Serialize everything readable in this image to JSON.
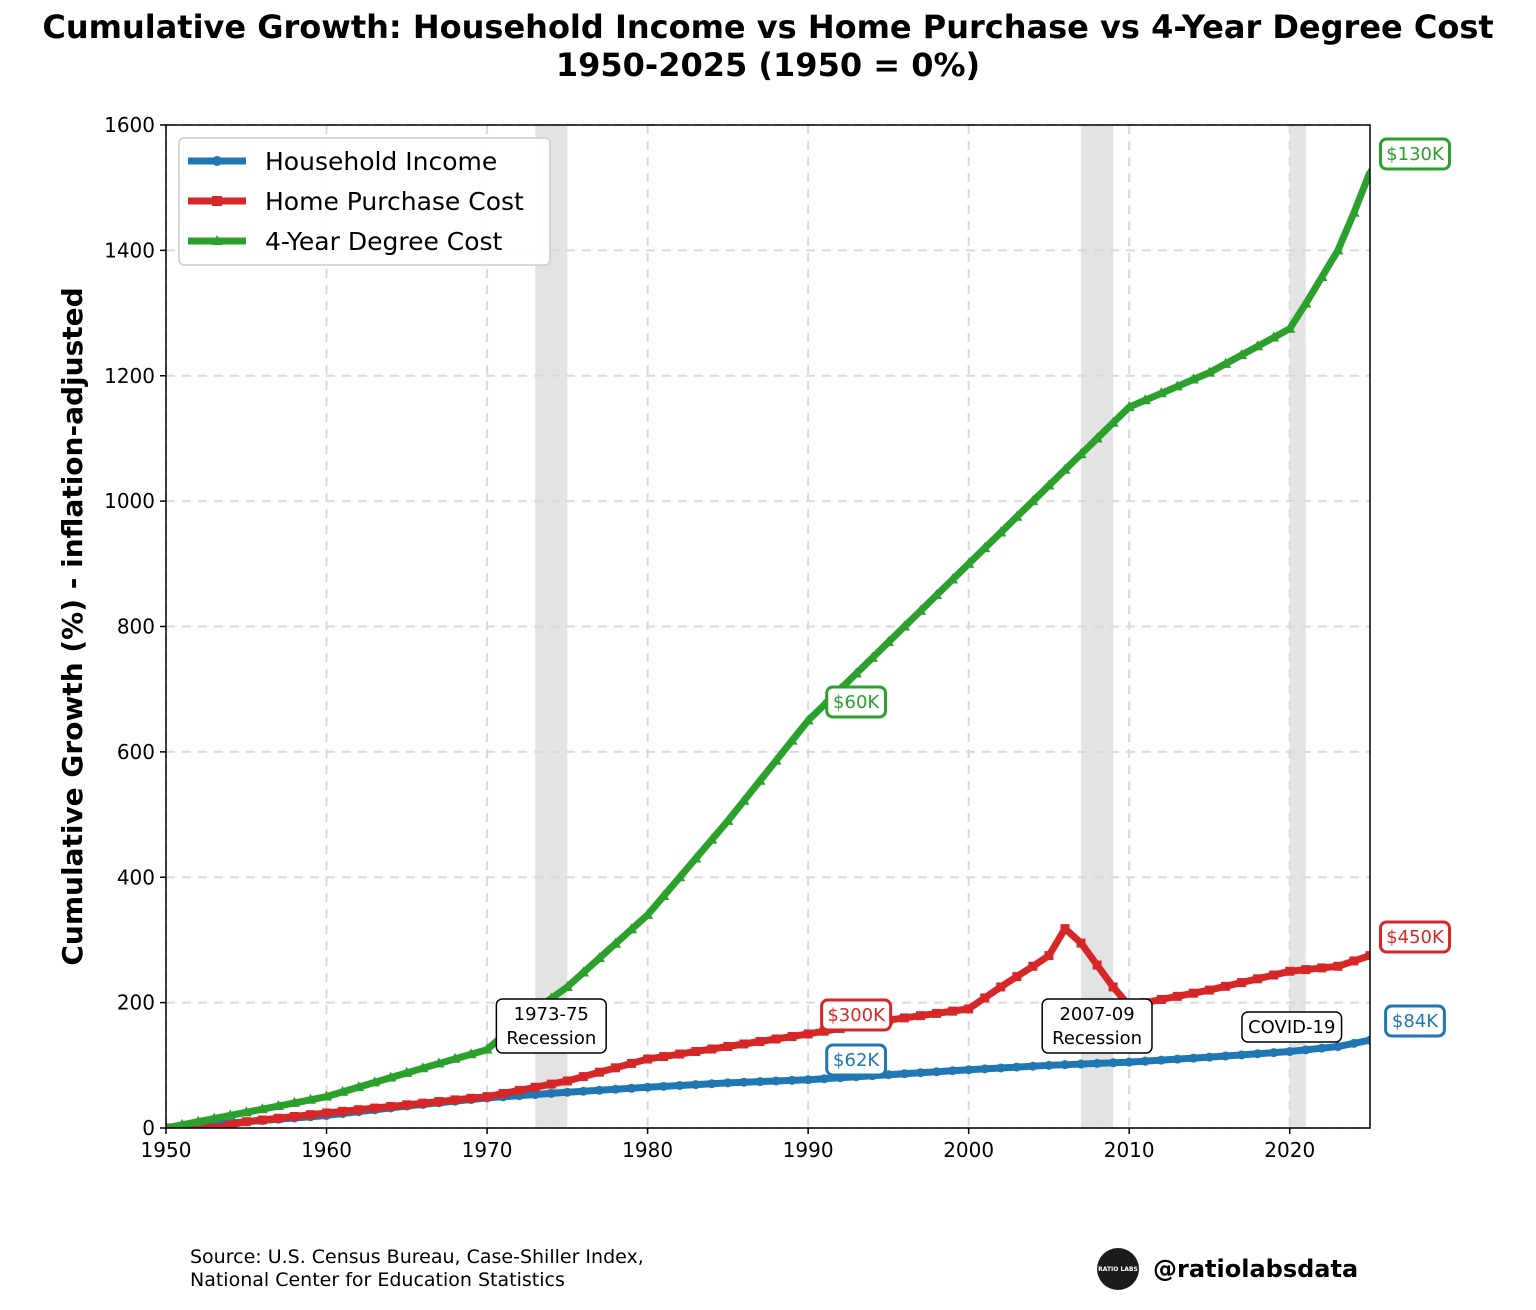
{
  "chart_data": {
    "type": "line",
    "title": "Cumulative Growth: Household Income vs Home Purchase vs 4-Year Degree Cost",
    "subtitle": "1950-2025 (1950 = 0%)",
    "xlabel": "",
    "ylabel": "Cumulative Growth (%) - inflation-adjusted",
    "xlim": [
      1950,
      2025
    ],
    "ylim": [
      0,
      1600
    ],
    "xticks": [
      "1950",
      "1960",
      "1970",
      "1980",
      "1990",
      "2000",
      "2010",
      "2020"
    ],
    "yticks": [
      "0",
      "200",
      "400",
      "600",
      "800",
      "1000",
      "1200",
      "1400",
      "1600"
    ],
    "grid": true,
    "legend_position": "upper-left",
    "recessions": [
      {
        "start": 1973,
        "end": 1975,
        "label": "1973-75\nRecession",
        "label_x": 1974.0,
        "label_y": 160
      },
      {
        "start": 2007,
        "end": 2009,
        "label": "2007-09\nRecession",
        "label_x": 2008.0,
        "label_y": 160
      },
      {
        "start": 2020,
        "end": 2021,
        "label": "COVID-19",
        "label_x": 2020.5,
        "label_y": 160
      }
    ],
    "series": [
      {
        "name": "Household Income",
        "color": "#1f77b4",
        "marker": "circle",
        "points": [
          [
            1950,
            0
          ],
          [
            1955,
            10
          ],
          [
            1960,
            20
          ],
          [
            1965,
            35
          ],
          [
            1970,
            48
          ],
          [
            1975,
            57
          ],
          [
            1980,
            65
          ],
          [
            1985,
            72
          ],
          [
            1990,
            77
          ],
          [
            1995,
            85
          ],
          [
            2000,
            93
          ],
          [
            2005,
            100
          ],
          [
            2010,
            105
          ],
          [
            2015,
            113
          ],
          [
            2020,
            122
          ],
          [
            2023,
            130
          ],
          [
            2025,
            140
          ]
        ],
        "annotations": [
          {
            "x": 1990,
            "y": 77,
            "text": "$62K"
          },
          {
            "x": 2025,
            "y": 140,
            "text": "$84K"
          }
        ]
      },
      {
        "name": "Home Purchase Cost",
        "color": "#d62728",
        "marker": "square",
        "points": [
          [
            1950,
            0
          ],
          [
            1953,
            0
          ],
          [
            1955,
            10
          ],
          [
            1960,
            24
          ],
          [
            1965,
            37
          ],
          [
            1970,
            50
          ],
          [
            1975,
            75
          ],
          [
            1980,
            110
          ],
          [
            1985,
            130
          ],
          [
            1990,
            150
          ],
          [
            1995,
            172
          ],
          [
            2000,
            190
          ],
          [
            2002,
            225
          ],
          [
            2004,
            258
          ],
          [
            2005,
            275
          ],
          [
            2006,
            318
          ],
          [
            2007,
            295
          ],
          [
            2008,
            260
          ],
          [
            2009,
            225
          ],
          [
            2010,
            195
          ],
          [
            2012,
            205
          ],
          [
            2015,
            220
          ],
          [
            2020,
            250
          ],
          [
            2023,
            258
          ],
          [
            2025,
            275
          ]
        ],
        "annotations": [
          {
            "x": 1990,
            "y": 150,
            "text": "$300K"
          },
          {
            "x": 2025,
            "y": 275,
            "text": "$450K"
          }
        ]
      },
      {
        "name": "4-Year Degree Cost",
        "color": "#2ca02c",
        "marker": "triangle",
        "points": [
          [
            1950,
            0
          ],
          [
            1955,
            25
          ],
          [
            1960,
            50
          ],
          [
            1965,
            88
          ],
          [
            1970,
            125
          ],
          [
            1972,
            170
          ],
          [
            1975,
            225
          ],
          [
            1980,
            340
          ],
          [
            1982,
            400
          ],
          [
            1985,
            490
          ],
          [
            1990,
            650
          ],
          [
            1995,
            775
          ],
          [
            2000,
            900
          ],
          [
            2005,
            1025
          ],
          [
            2010,
            1150
          ],
          [
            2015,
            1205
          ],
          [
            2020,
            1275
          ],
          [
            2021,
            1315
          ],
          [
            2023,
            1400
          ],
          [
            2024,
            1460
          ],
          [
            2025,
            1525
          ]
        ],
        "annotations": [
          {
            "x": 1990,
            "y": 650,
            "text": "$60K"
          },
          {
            "x": 2025,
            "y": 1525,
            "text": "$130K"
          }
        ]
      }
    ]
  },
  "footer": {
    "source_line1": "Source: U.S. Census Bureau, Case-Shiller Index,",
    "source_line2": "National Center for Education Statistics",
    "brand_logo_text": "RATIO LABS",
    "handle": "@ratiolabsdata"
  }
}
